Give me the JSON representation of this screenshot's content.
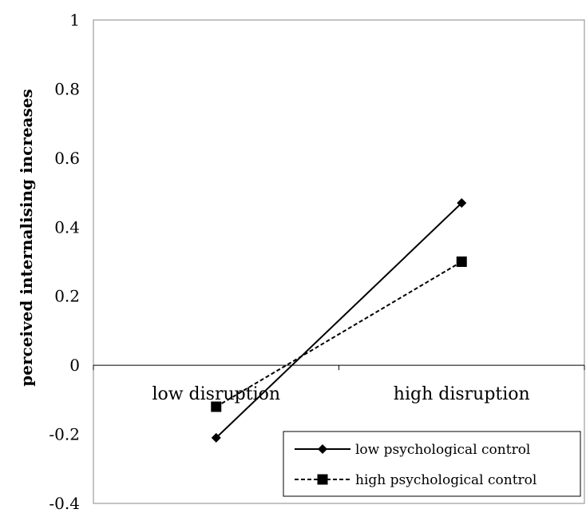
{
  "chart_data": {
    "type": "line",
    "title": "",
    "xlabel": "",
    "ylabel": "perceived internalising increases",
    "categories": [
      "low disruption",
      "high disruption"
    ],
    "ylim": [
      -0.4,
      1
    ],
    "yticks": [
      "-0.4",
      "-0.2",
      "0",
      "0.2",
      "0.4",
      "0.6",
      "0.8",
      "1"
    ],
    "ytick_values": [
      -0.4,
      -0.2,
      0,
      0.2,
      0.4,
      0.6,
      0.8,
      1
    ],
    "grid": false,
    "legend_position": "bottom-right",
    "series": [
      {
        "name": "low psychological control",
        "values": [
          -0.21,
          0.47
        ],
        "marker": "diamond",
        "line_style": "solid",
        "color": "#000000"
      },
      {
        "name": "high psychological control",
        "values": [
          -0.12,
          0.3
        ],
        "marker": "square",
        "line_style": "dashed",
        "color": "#000000"
      }
    ]
  }
}
